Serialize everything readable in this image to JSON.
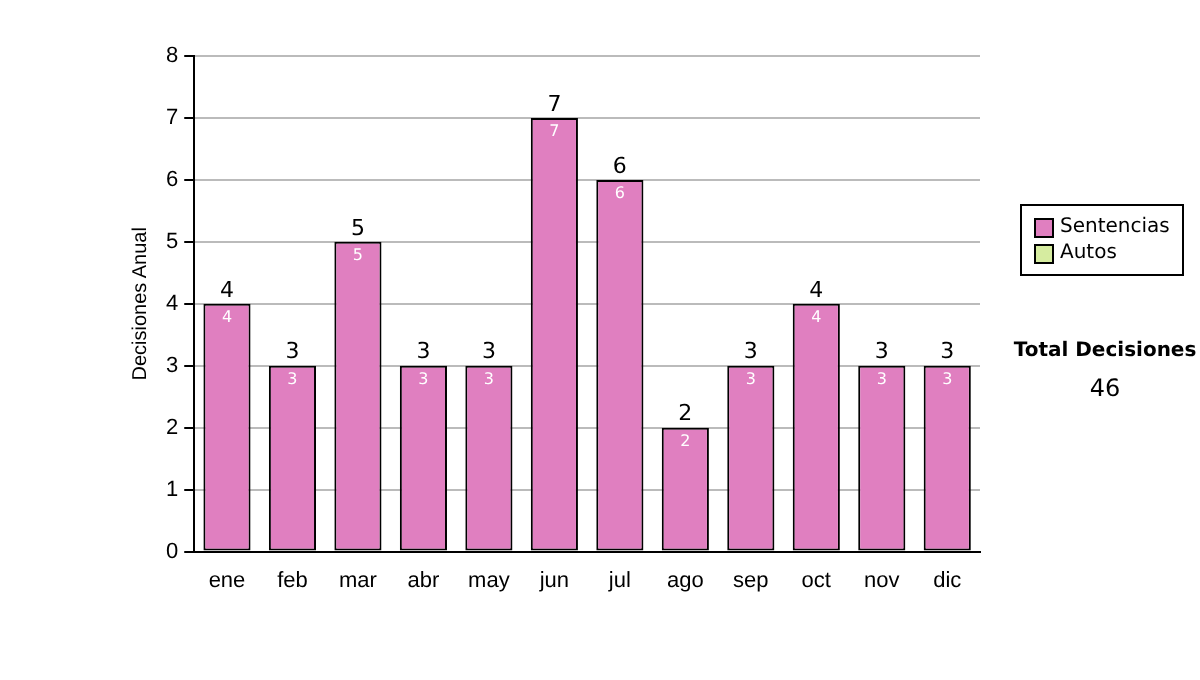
{
  "chart_data": {
    "type": "bar",
    "stacked": true,
    "ylabel": "Decisiones Anual",
    "categories": [
      "ene",
      "feb",
      "mar",
      "abr",
      "may",
      "jun",
      "jul",
      "ago",
      "sep",
      "oct",
      "nov",
      "dic"
    ],
    "series": [
      {
        "name": "Sentencias",
        "color": "#e07fc0",
        "values": [
          4,
          3,
          5,
          3,
          3,
          7,
          6,
          2,
          3,
          4,
          3,
          3
        ],
        "value_labels": [
          "4",
          "3",
          "5",
          "3",
          "3",
          "7",
          "6",
          "2",
          "3",
          "4",
          "3",
          "3"
        ]
      },
      {
        "name": "Autos",
        "color": "#d6eca0",
        "values": [
          0,
          0,
          0,
          0,
          0,
          0,
          0,
          0,
          0,
          0,
          0,
          0
        ]
      }
    ],
    "totals": [
      "4",
      "3",
      "5",
      "3",
      "3",
      "7",
      "6",
      "2",
      "3",
      "4",
      "3",
      "3"
    ],
    "ylim": [
      0,
      8
    ],
    "yticks": [
      0,
      1,
      2,
      3,
      4,
      5,
      6,
      7,
      8
    ],
    "grid": "y",
    "legend": "right",
    "annotations": [
      "Total Decisiones",
      "46"
    ]
  }
}
